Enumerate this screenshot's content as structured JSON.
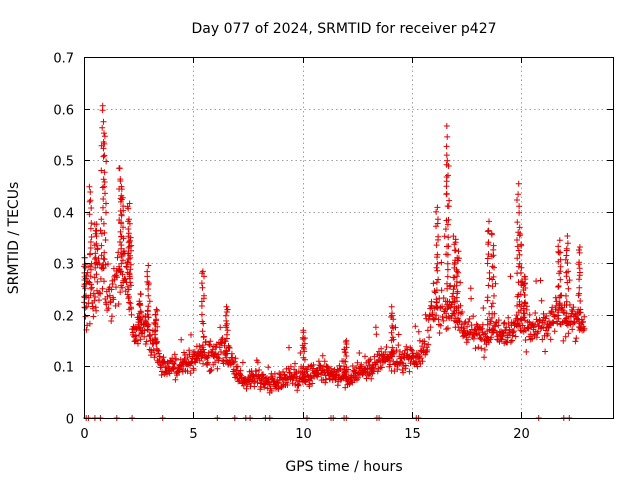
{
  "chart_data": {
    "type": "scatter",
    "title": "Day 077 of 2024, SRMTID for receiver p427",
    "xlabel": "GPS time / hours",
    "ylabel": "SRMTID / TECUs",
    "xlim": [
      0,
      24.2
    ],
    "ylim": [
      0,
      0.7
    ],
    "x_ticks": [
      0,
      5,
      10,
      15,
      20
    ],
    "x_tick_labels": [
      "0",
      "5",
      "10",
      "15",
      "20"
    ],
    "y_ticks": [
      0,
      0.1,
      0.2,
      0.3,
      0.4,
      0.5,
      0.6,
      0.7
    ],
    "y_tick_labels": [
      "0",
      "0.1",
      "0.2",
      "0.3",
      "0.4",
      "0.5",
      "0.6",
      "0.7"
    ],
    "grid": true,
    "marker": "plus",
    "color": "#e00000",
    "data_span_hours": [
      0,
      22.9
    ],
    "series": [
      {
        "name": "SRMTID",
        "profile": [
          [
            0.0,
            0.22,
            0.09
          ],
          [
            0.3,
            0.24,
            0.1
          ],
          [
            0.6,
            0.27,
            0.13
          ],
          [
            0.9,
            0.3,
            0.16
          ],
          [
            1.2,
            0.22,
            0.1
          ],
          [
            1.6,
            0.3,
            0.12
          ],
          [
            1.9,
            0.28,
            0.1
          ],
          [
            2.3,
            0.17,
            0.06
          ],
          [
            2.8,
            0.16,
            0.06
          ],
          [
            3.2,
            0.15,
            0.06
          ],
          [
            3.6,
            0.1,
            0.04
          ],
          [
            4.2,
            0.1,
            0.04
          ],
          [
            4.8,
            0.11,
            0.04
          ],
          [
            5.3,
            0.12,
            0.04
          ],
          [
            5.8,
            0.12,
            0.05
          ],
          [
            6.3,
            0.13,
            0.05
          ],
          [
            6.8,
            0.1,
            0.04
          ],
          [
            7.3,
            0.07,
            0.03
          ],
          [
            7.8,
            0.08,
            0.03
          ],
          [
            8.3,
            0.07,
            0.03
          ],
          [
            8.8,
            0.07,
            0.03
          ],
          [
            9.3,
            0.08,
            0.04
          ],
          [
            9.8,
            0.08,
            0.04
          ],
          [
            10.3,
            0.08,
            0.04
          ],
          [
            10.8,
            0.09,
            0.04
          ],
          [
            11.3,
            0.08,
            0.03
          ],
          [
            11.8,
            0.08,
            0.03
          ],
          [
            12.3,
            0.08,
            0.03
          ],
          [
            12.8,
            0.09,
            0.03
          ],
          [
            13.3,
            0.1,
            0.04
          ],
          [
            13.8,
            0.12,
            0.04
          ],
          [
            14.3,
            0.11,
            0.04
          ],
          [
            14.8,
            0.12,
            0.04
          ],
          [
            15.2,
            0.12,
            0.05
          ],
          [
            15.6,
            0.13,
            0.05
          ],
          [
            16.0,
            0.22,
            0.08
          ],
          [
            16.4,
            0.2,
            0.08
          ],
          [
            16.8,
            0.23,
            0.09
          ],
          [
            17.2,
            0.18,
            0.06
          ],
          [
            17.6,
            0.17,
            0.06
          ],
          [
            18.0,
            0.16,
            0.05
          ],
          [
            18.4,
            0.16,
            0.05
          ],
          [
            18.8,
            0.18,
            0.06
          ],
          [
            19.2,
            0.17,
            0.05
          ],
          [
            19.6,
            0.17,
            0.06
          ],
          [
            20.0,
            0.2,
            0.08
          ],
          [
            20.4,
            0.17,
            0.06
          ],
          [
            20.8,
            0.18,
            0.06
          ],
          [
            21.2,
            0.17,
            0.06
          ],
          [
            21.6,
            0.2,
            0.07
          ],
          [
            22.0,
            0.2,
            0.07
          ],
          [
            22.4,
            0.19,
            0.06
          ],
          [
            22.9,
            0.18,
            0.06
          ]
        ],
        "peaks": [
          [
            0.05,
            0.31
          ],
          [
            0.3,
            0.45
          ],
          [
            0.55,
            0.38
          ],
          [
            0.85,
            0.61
          ],
          [
            0.95,
            0.55
          ],
          [
            1.65,
            0.49
          ],
          [
            1.75,
            0.45
          ],
          [
            2.05,
            0.41
          ],
          [
            2.1,
            0.36
          ],
          [
            2.55,
            0.24
          ],
          [
            2.95,
            0.29
          ],
          [
            3.3,
            0.21
          ],
          [
            5.45,
            0.29
          ],
          [
            6.55,
            0.22
          ],
          [
            10.05,
            0.17
          ],
          [
            11.95,
            0.15
          ],
          [
            14.1,
            0.21
          ],
          [
            16.15,
            0.41
          ],
          [
            16.6,
            0.57
          ],
          [
            16.65,
            0.5
          ],
          [
            16.95,
            0.35
          ],
          [
            17.1,
            0.32
          ],
          [
            18.5,
            0.38
          ],
          [
            18.7,
            0.36
          ],
          [
            19.85,
            0.45
          ],
          [
            19.95,
            0.37
          ],
          [
            20.15,
            0.28
          ],
          [
            21.75,
            0.34
          ],
          [
            22.1,
            0.35
          ],
          [
            22.65,
            0.33
          ]
        ],
        "baseline_points_hours": [
          0.1,
          0.2,
          0.5,
          0.75,
          1.5,
          2.2,
          3.6,
          6.1,
          6.9,
          7.4,
          7.6,
          8.3,
          8.5,
          10.2,
          11.3,
          11.4,
          11.9,
          12.0,
          13.4,
          13.5,
          15.2,
          15.3,
          20.8,
          21.95,
          22.2
        ]
      }
    ]
  }
}
